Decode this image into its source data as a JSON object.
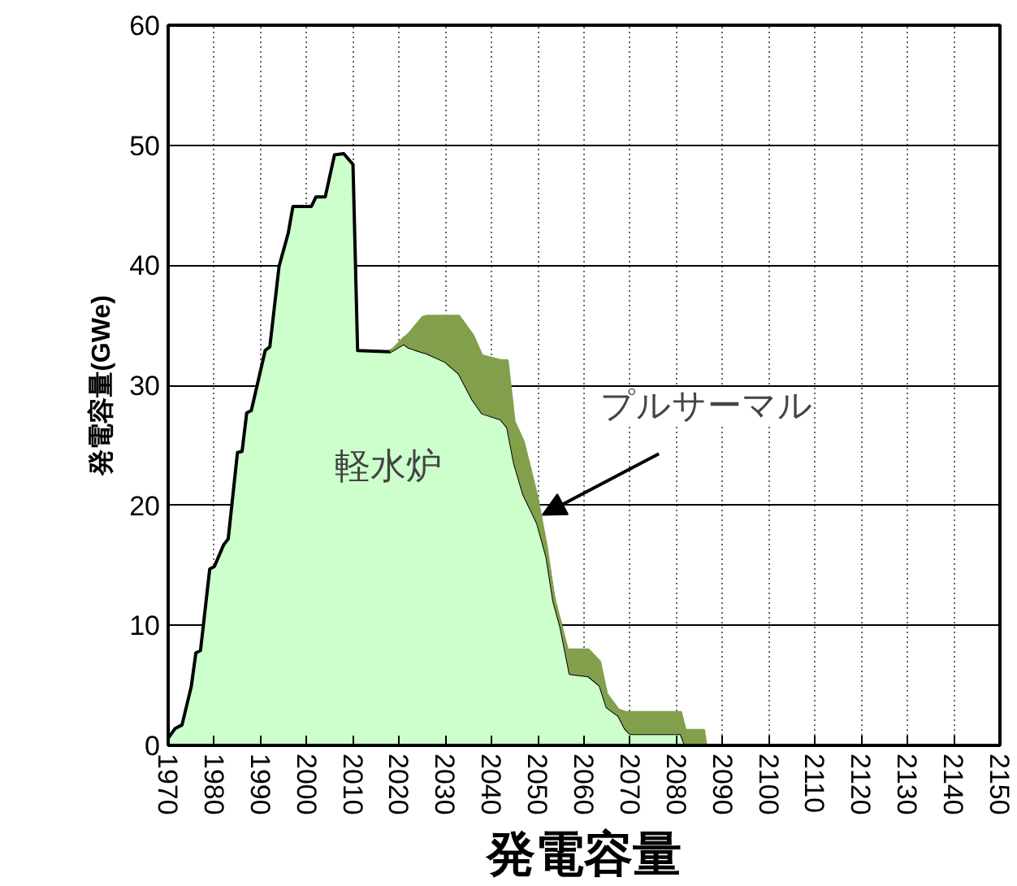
{
  "chart_data": {
    "type": "area",
    "stacked": true,
    "xlabel": "発電容量",
    "ylabel": "発電容量(GWe)",
    "x": [
      1970,
      1971.5,
      1973,
      1975,
      1976,
      1977,
      1979,
      1980,
      1982,
      1983,
      1985,
      1986,
      1987,
      1988,
      1991,
      1992,
      1994,
      1996,
      1997,
      2001,
      2002,
      2004,
      2006,
      2008,
      2010,
      2011,
      2018,
      2021,
      2022,
      2025,
      2026,
      2030,
      2033,
      2036,
      2038,
      2042,
      2043.5,
      2045,
      2047,
      2049,
      2050,
      2052,
      2053.5,
      2055,
      2056.5,
      2057,
      2061,
      2063.5,
      2065,
      2067.5,
      2069,
      2070,
      2081,
      2082,
      2086,
      2086.5,
      2150
    ],
    "series": [
      {
        "name": "軽水炉",
        "color": "#ccffcc",
        "values": [
          0.6,
          1.4,
          1.7,
          4.9,
          7.7,
          7.9,
          14.7,
          14.9,
          16.7,
          17.2,
          24.4,
          24.5,
          27.7,
          27.9,
          32.9,
          33.2,
          39.9,
          42.7,
          44.9,
          44.9,
          45.7,
          45.7,
          49.2,
          49.3,
          48.4,
          32.9,
          32.8,
          33.5,
          33.2,
          32.8,
          32.7,
          32.0,
          31.0,
          28.8,
          27.7,
          27.2,
          26.5,
          23.5,
          20.9,
          19.3,
          18.5,
          15.7,
          12.0,
          9.9,
          7.0,
          6.0,
          5.8,
          5.0,
          3.2,
          2.5,
          1.4,
          1.0,
          1.0,
          0,
          0,
          0,
          0
        ]
      },
      {
        "name": "プルサーマル",
        "color": "#82a04c",
        "values": [
          null,
          null,
          null,
          null,
          null,
          null,
          null,
          null,
          null,
          null,
          null,
          null,
          null,
          null,
          null,
          null,
          null,
          null,
          null,
          null,
          null,
          null,
          null,
          null,
          null,
          null,
          0,
          0.5,
          1.1,
          2.9,
          3.1,
          3.8,
          4.8,
          5.4,
          4.8,
          4.9,
          5.6,
          3.5,
          4.4,
          2.9,
          2.1,
          0.8,
          0.5,
          0.3,
          1.0,
          2.0,
          2.2,
          2.0,
          1.1,
          0.5,
          1.4,
          1.8,
          1.8,
          1.3,
          1.3,
          0,
          null
        ]
      }
    ],
    "xlim": [
      1970,
      2150
    ],
    "xticks": [
      1970,
      1980,
      1990,
      2000,
      2010,
      2020,
      2030,
      2040,
      2050,
      2060,
      2070,
      2080,
      2090,
      2100,
      2110,
      2120,
      2130,
      2140,
      2150
    ],
    "ylim": [
      0,
      60
    ],
    "yticks": [
      0,
      10,
      20,
      30,
      40,
      50,
      60
    ],
    "grid": true
  }
}
